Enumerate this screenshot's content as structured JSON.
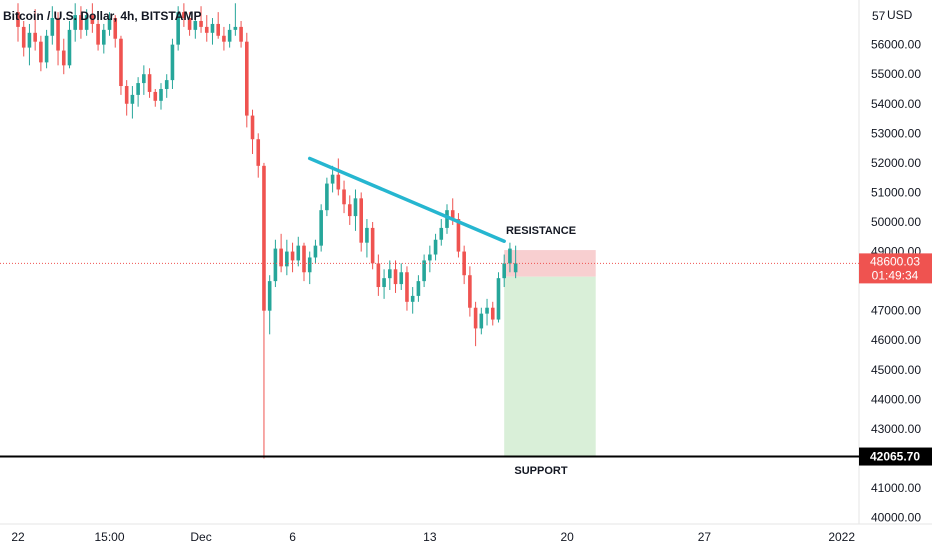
{
  "header": {
    "title": "Bitcoin / U.S. Dollar, 4h, BITSTAMP",
    "currency": "USD",
    "top_partial_label": "57"
  },
  "colors": {
    "bull": "#26a69a",
    "bear": "#ef5350",
    "trendline": "#26b6d0",
    "support_line": "#000000",
    "stop_zone": "#f8cfd0",
    "target_zone": "#d9efd8",
    "price_badge": "#ef5350",
    "support_badge": "#000000"
  },
  "chart_data": {
    "type": "candlestick",
    "symbol": "BTCUSD",
    "interval": "4h",
    "exchange": "BITSTAMP",
    "y_axis": {
      "range": [
        39800,
        57400
      ],
      "ticks": [
        40000,
        41000,
        43000,
        44000,
        45000,
        46000,
        47000,
        49000,
        50000,
        51000,
        52000,
        53000,
        54000,
        55000,
        56000
      ],
      "tick_labels": [
        "40000.00",
        "41000.00",
        "43000.00",
        "44000.00",
        "45000.00",
        "46000.00",
        "47000.00",
        "49000.00",
        "50000.00",
        "51000.00",
        "52000.00",
        "53000.00",
        "54000.00",
        "55000.00",
        "56000.00"
      ]
    },
    "x_axis": {
      "tick_labels": [
        "22",
        "15:00",
        "Dec",
        "6",
        "13",
        "20",
        "27",
        "2022"
      ],
      "tick_index": [
        0,
        16,
        32,
        48,
        72,
        96,
        120,
        144
      ]
    },
    "last_price": {
      "value": 48600.03,
      "label": "48600.03",
      "countdown": "01:49:34"
    },
    "support": {
      "value": 42065.7,
      "label": "42065.70",
      "text": "SUPPORT"
    },
    "resistance_text": "RESISTANCE",
    "trendline": [
      {
        "i": 51,
        "price": 52150
      },
      {
        "i": 85,
        "price": 49350
      }
    ],
    "position": {
      "start_i": 85,
      "end_i": 101,
      "entry": 48150,
      "stop": 49050,
      "target": 42100
    },
    "candles": [
      [
        57100,
        57400,
        56100,
        56600
      ],
      [
        56600,
        56800,
        55600,
        55900
      ],
      [
        55900,
        56700,
        55300,
        56400
      ],
      [
        56400,
        57200,
        55800,
        56100
      ],
      [
        56100,
        56300,
        55100,
        55400
      ],
      [
        55400,
        56500,
        55200,
        56300
      ],
      [
        56300,
        57300,
        56000,
        56900
      ],
      [
        56900,
        57100,
        55300,
        55800
      ],
      [
        55800,
        56200,
        55000,
        55300
      ],
      [
        55300,
        56800,
        55200,
        56500
      ],
      [
        56500,
        57400,
        56100,
        57000
      ],
      [
        57000,
        57300,
        56200,
        56500
      ],
      [
        56500,
        57200,
        56300,
        57000
      ],
      [
        57000,
        57400,
        56400,
        56700
      ],
      [
        56700,
        57000,
        55800,
        56000
      ],
      [
        56000,
        56700,
        55700,
        56500
      ],
      [
        56500,
        57100,
        56300,
        56900
      ],
      [
        56900,
        57000,
        55900,
        56200
      ],
      [
        56200,
        56300,
        54300,
        54600
      ],
      [
        54600,
        54800,
        53600,
        54000
      ],
      [
        54000,
        54600,
        53500,
        54300
      ],
      [
        54300,
        54900,
        53900,
        54700
      ],
      [
        54700,
        55300,
        54300,
        55000
      ],
      [
        55000,
        55200,
        54200,
        54400
      ],
      [
        54400,
        54500,
        53900,
        54100
      ],
      [
        54100,
        54700,
        53800,
        54500
      ],
      [
        54500,
        55000,
        54200,
        54800
      ],
      [
        54800,
        56200,
        54500,
        56000
      ],
      [
        56000,
        57300,
        55800,
        57100
      ],
      [
        57100,
        57400,
        56600,
        56900
      ],
      [
        56900,
        57100,
        56300,
        56500
      ],
      [
        56500,
        57000,
        56200,
        56800
      ],
      [
        56800,
        57300,
        56400,
        56600
      ],
      [
        56600,
        57000,
        56100,
        56400
      ],
      [
        56400,
        56900,
        56000,
        56700
      ],
      [
        56700,
        57100,
        56200,
        56300
      ],
      [
        56300,
        56600,
        55800,
        56100
      ],
      [
        56100,
        56700,
        55900,
        56500
      ],
      [
        56500,
        57400,
        56300,
        56600
      ],
      [
        56600,
        56800,
        55900,
        56100
      ],
      [
        56100,
        56400,
        53200,
        53600
      ],
      [
        53600,
        53800,
        52300,
        52800
      ],
      [
        52800,
        53000,
        51500,
        51900
      ],
      [
        51900,
        52000,
        42000,
        47000
      ],
      [
        47000,
        48200,
        46200,
        48000
      ],
      [
        48000,
        49400,
        47800,
        49100
      ],
      [
        49100,
        49600,
        48300,
        48500
      ],
      [
        48500,
        49400,
        48200,
        49000
      ],
      [
        49000,
        49300,
        48300,
        48700
      ],
      [
        48700,
        49500,
        48500,
        49200
      ],
      [
        49200,
        49300,
        48000,
        48300
      ],
      [
        48300,
        49000,
        47900,
        48800
      ],
      [
        48800,
        49400,
        48600,
        49200
      ],
      [
        49200,
        50600,
        49000,
        50400
      ],
      [
        50400,
        51500,
        50200,
        51300
      ],
      [
        51300,
        51900,
        51000,
        51600
      ],
      [
        51600,
        52150,
        50900,
        51100
      ],
      [
        51100,
        51400,
        50300,
        50600
      ],
      [
        50600,
        50900,
        49900,
        50200
      ],
      [
        50200,
        51100,
        49700,
        50800
      ],
      [
        50800,
        51000,
        49000,
        49300
      ],
      [
        49300,
        50100,
        48800,
        49800
      ],
      [
        49800,
        50000,
        48400,
        48600
      ],
      [
        48600,
        48900,
        47500,
        47800
      ],
      [
        47800,
        48400,
        47400,
        48100
      ],
      [
        48100,
        48700,
        47700,
        48400
      ],
      [
        48400,
        48700,
        47600,
        47900
      ],
      [
        47900,
        48600,
        47700,
        48300
      ],
      [
        48300,
        48500,
        47000,
        47300
      ],
      [
        47300,
        47800,
        46900,
        47500
      ],
      [
        47500,
        48200,
        47300,
        48000
      ],
      [
        48000,
        48900,
        47800,
        48700
      ],
      [
        48700,
        49200,
        48300,
        48900
      ],
      [
        48900,
        49600,
        48700,
        49400
      ],
      [
        49400,
        50100,
        49200,
        49800
      ],
      [
        49800,
        50600,
        49600,
        50400
      ],
      [
        50400,
        50800,
        49900,
        50100
      ],
      [
        50100,
        50300,
        48800,
        49000
      ],
      [
        49000,
        49200,
        47900,
        48200
      ],
      [
        48200,
        48500,
        46800,
        47100
      ],
      [
        47100,
        47300,
        45800,
        46400
      ],
      [
        46400,
        47100,
        46200,
        46900
      ],
      [
        46900,
        47400,
        46500,
        47100
      ],
      [
        47100,
        47300,
        46500,
        46700
      ],
      [
        46700,
        48300,
        46600,
        48100
      ],
      [
        48100,
        48900,
        47800,
        48600
      ],
      [
        48600,
        49300,
        48300,
        49100
      ],
      [
        48300,
        49200,
        48100,
        48600
      ]
    ]
  }
}
